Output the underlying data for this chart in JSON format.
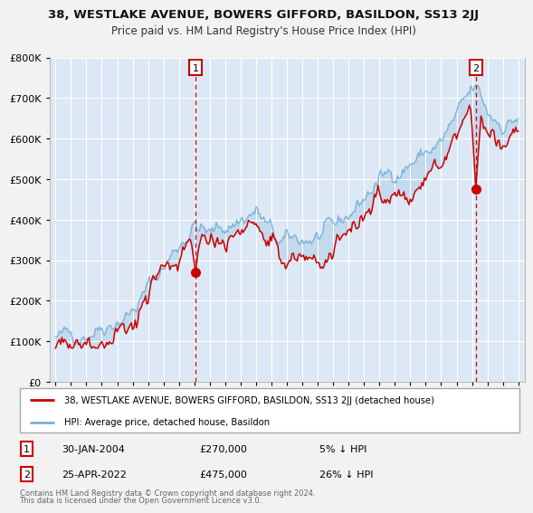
{
  "title": "38, WESTLAKE AVENUE, BOWERS GIFFORD, BASILDON, SS13 2JJ",
  "subtitle": "Price paid vs. HM Land Registry's House Price Index (HPI)",
  "legend_line1": "38, WESTLAKE AVENUE, BOWERS GIFFORD, BASILDON, SS13 2JJ (detached house)",
  "legend_line2": "HPI: Average price, detached house, Basildon",
  "ann1_label": "1",
  "ann1_date": "30-JAN-2004",
  "ann1_price": "£270,000",
  "ann1_note": "5% ↓ HPI",
  "ann1_x": 2004.08,
  "ann1_y": 270000,
  "ann2_label": "2",
  "ann2_date": "25-APR-2022",
  "ann2_price": "£475,000",
  "ann2_note": "26% ↓ HPI",
  "ann2_x": 2022.25,
  "ann2_y": 475000,
  "footer1": "Contains HM Land Registry data © Crown copyright and database right 2024.",
  "footer2": "This data is licensed under the Open Government Licence v3.0.",
  "ylim": [
    0,
    800000
  ],
  "xlim_lo": 1994.6,
  "xlim_hi": 2025.4,
  "yticks": [
    0,
    100000,
    200000,
    300000,
    400000,
    500000,
    600000,
    700000,
    800000
  ],
  "red_color": "#cc0000",
  "blue_color": "#7bafd4",
  "plot_bg": "#dce8f5",
  "fig_bg": "#f0f0f0"
}
